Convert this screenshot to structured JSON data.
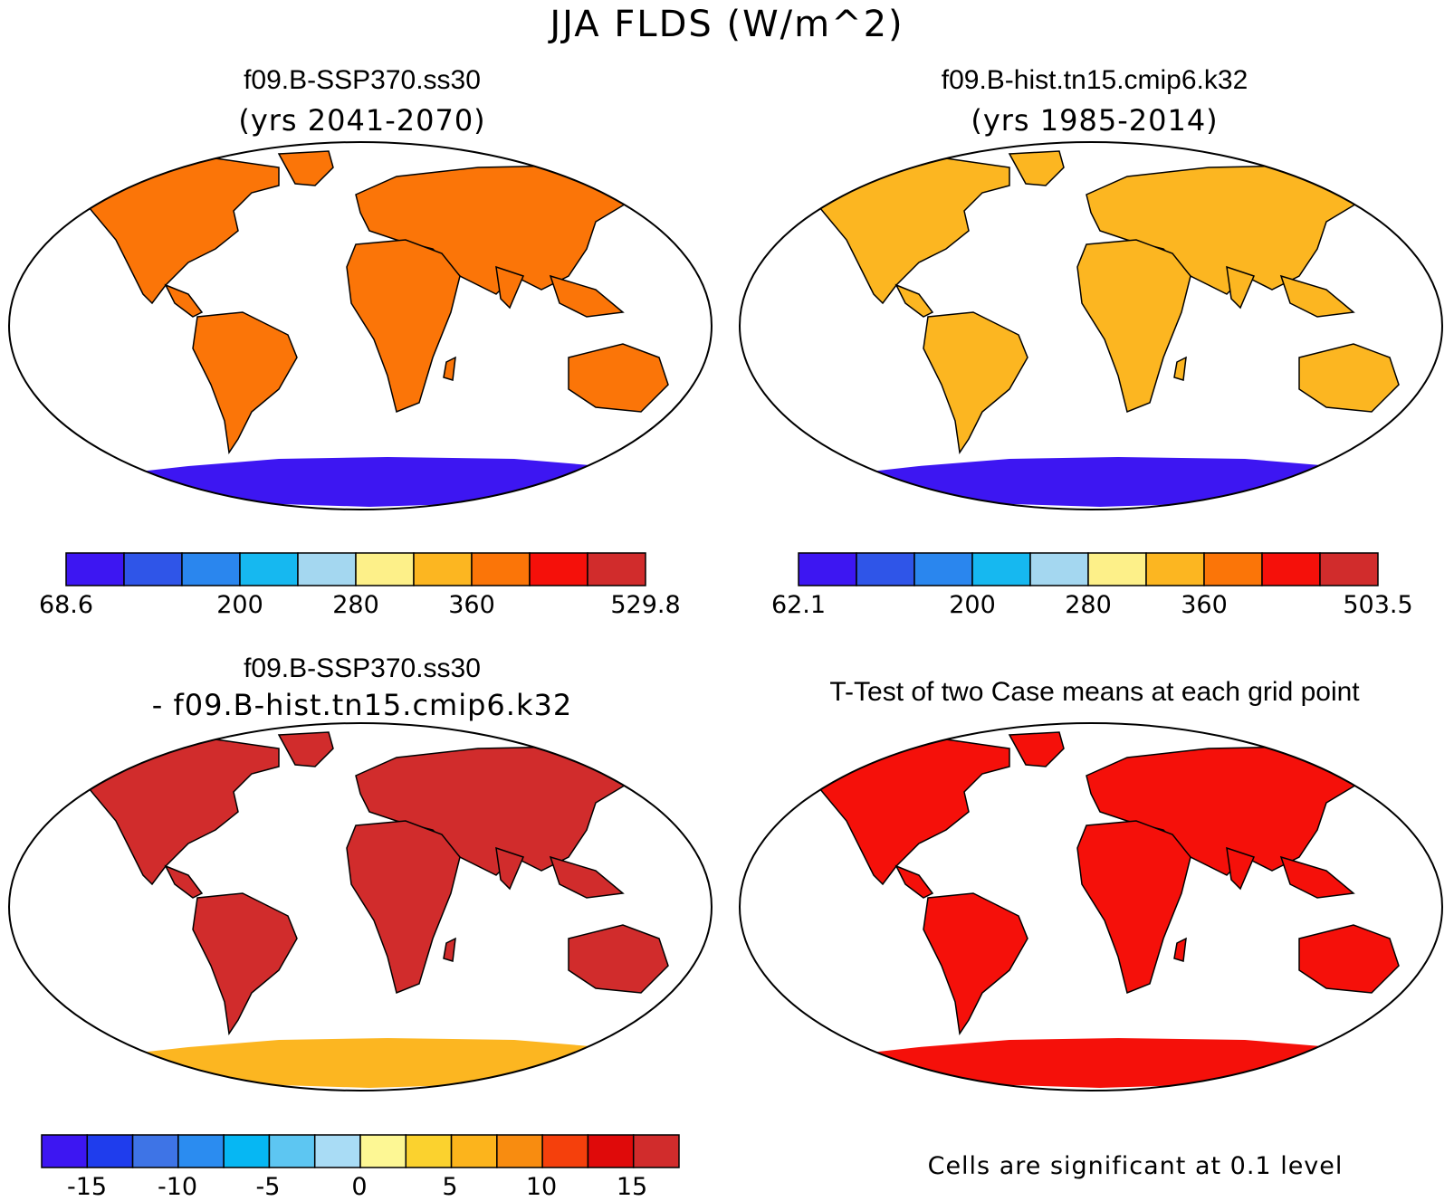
{
  "main_title": "JJA FLDS (W/m^2)",
  "panels": [
    {
      "id": "ssp370",
      "title": "f09.B-SSP370.ss30",
      "subtitle": "(yrs 2041-2070)",
      "colorbar": {
        "colors": [
          "#3d16f2",
          "#2f55e8",
          "#2a86ee",
          "#16b8f0",
          "#a4d7f0",
          "#fdf089",
          "#fcb621",
          "#fb7508",
          "#f5100a",
          "#d12c2c"
        ],
        "tick_labels": [
          "68.6",
          "200",
          "280",
          "360",
          "529.8"
        ]
      }
    },
    {
      "id": "hist",
      "title": "f09.B-hist.tn15.cmip6.k32",
      "subtitle": "(yrs 1985-2014)",
      "colorbar": {
        "colors": [
          "#3d16f2",
          "#2f55e8",
          "#2a86ee",
          "#16b8f0",
          "#a4d7f0",
          "#fdf089",
          "#fcb621",
          "#fb7508",
          "#f5100a",
          "#d12c2c"
        ],
        "tick_labels": [
          "62.1",
          "200",
          "280",
          "360",
          "503.5"
        ]
      }
    },
    {
      "id": "diff",
      "title": "f09.B-SSP370.ss30",
      "subtitle": "- f09.B-hist.tn15.cmip6.k32",
      "colorbar": {
        "colors": [
          "#3d16f2",
          "#1f3ded",
          "#3e74e6",
          "#2b8cf0",
          "#06b7f3",
          "#5dc6f2",
          "#a9dcf5",
          "#fdf794",
          "#fbd22e",
          "#fcb41c",
          "#f88c10",
          "#f5400c",
          "#df0a0a",
          "#d12c2c"
        ],
        "tick_labels": [
          "-15",
          "-10",
          "-5",
          "0",
          "5",
          "10",
          "15"
        ]
      }
    },
    {
      "id": "ttest",
      "title": "T-Test of two Case means at each grid point",
      "note": "Cells are significant at 0.1 level"
    }
  ],
  "fill_colors": {
    "ocean": "#ffffff",
    "ssp_land": "#fb7508",
    "hist_land": "#fcb621",
    "diff_land": "#d12c2c",
    "ttest_land": "#f5100a",
    "antarctica": "#3d16f2",
    "diff_antarctica": "#fcb621"
  }
}
